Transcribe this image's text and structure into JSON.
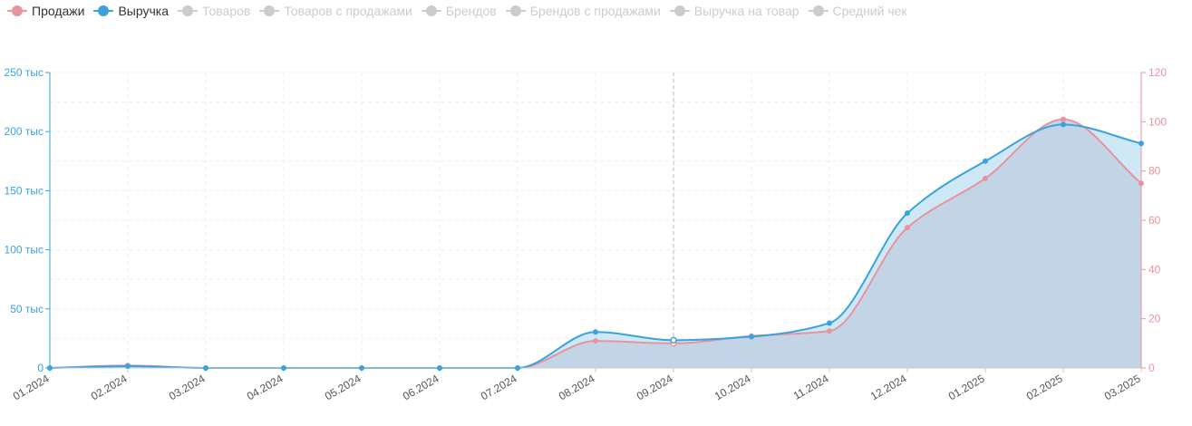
{
  "legend": [
    {
      "label": "Продажи",
      "color": "#e8949e",
      "active": true
    },
    {
      "label": "Выручка",
      "color": "#3aa3dc",
      "active": true
    },
    {
      "label": "Товаров",
      "color": "#cccccc",
      "active": false
    },
    {
      "label": "Товаров с продажами",
      "color": "#cccccc",
      "active": false
    },
    {
      "label": "Брендов",
      "color": "#cccccc",
      "active": false
    },
    {
      "label": "Брендов с продажами",
      "color": "#cccccc",
      "active": false
    },
    {
      "label": "Выручка на товар",
      "color": "#cccccc",
      "active": false
    },
    {
      "label": "Средний чек",
      "color": "#cccccc",
      "active": false
    }
  ],
  "colors": {
    "sales": "#e8949e",
    "revenue": "#3aa3dc",
    "revenue_fill": "#c9e6f5",
    "overlap_fill": "#c3d3e6",
    "left_axis": "#3aa3dc",
    "right_axis": "#e8949e",
    "x_axis_text": "#555555",
    "grid": "#eeeeee",
    "legend_active_text": "#333333",
    "legend_inactive_text": "#cccccc"
  },
  "chart_data": {
    "type": "area",
    "categories": [
      "01.2024",
      "02.2024",
      "03.2024",
      "04.2024",
      "05.2024",
      "06.2024",
      "07.2024",
      "08.2024",
      "09.2024",
      "10.2024",
      "11.2024",
      "12.2024",
      "01.2025",
      "02.2025",
      "03.2025"
    ],
    "series": [
      {
        "name": "Выручка",
        "axis": "left",
        "values": [
          0,
          1500,
          0,
          0,
          0,
          0,
          0,
          30500,
          23500,
          26500,
          38000,
          131000,
          175000,
          206000,
          190000
        ]
      },
      {
        "name": "Продажи",
        "axis": "right",
        "values": [
          0,
          1,
          0,
          0,
          0,
          0,
          0,
          11,
          10,
          13,
          15,
          57,
          77,
          101,
          75
        ]
      }
    ],
    "y_left": {
      "min": 0,
      "max": 250000,
      "ticks": [
        0,
        50000,
        100000,
        150000,
        200000,
        250000
      ],
      "tick_labels": [
        "0",
        "50 тыс",
        "100 тыс",
        "150 тыс",
        "200 тыс",
        "250 тыс"
      ]
    },
    "y_right": {
      "min": 0,
      "max": 120,
      "ticks": [
        0,
        20,
        40,
        60,
        80,
        100,
        120
      ],
      "tick_labels": [
        "0",
        "20",
        "40",
        "60",
        "80",
        "100",
        "120"
      ]
    },
    "highlight_category": "09.2024",
    "grid": true,
    "legend_position": "top-left"
  }
}
